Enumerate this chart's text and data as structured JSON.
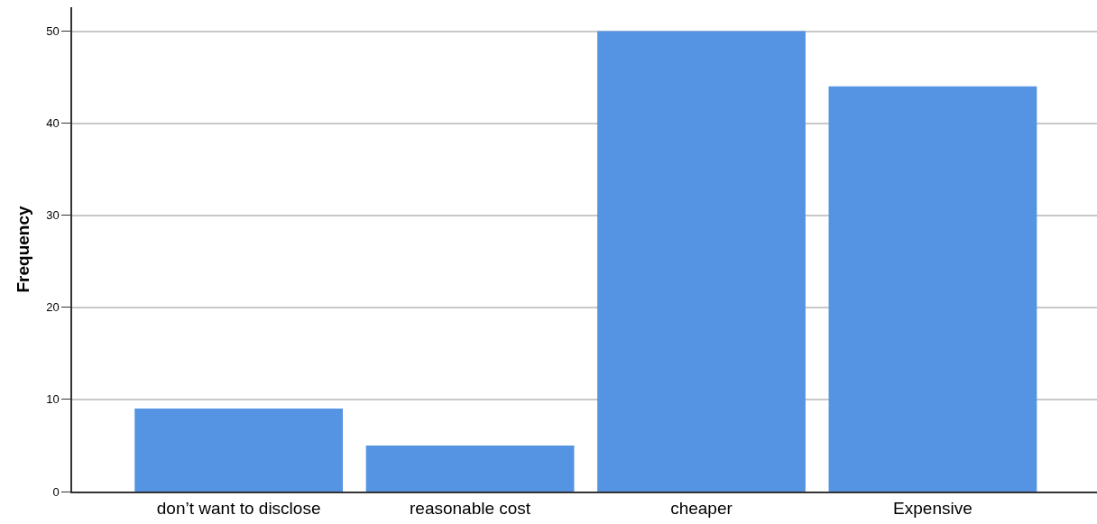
{
  "chart_data": {
    "type": "bar",
    "ylabel": "Frequency",
    "categories": [
      "don’t want to disclose",
      "reasonable cost",
      "cheaper",
      "Expensive"
    ],
    "values": [
      9,
      5,
      50,
      44
    ],
    "color": "#5594e3",
    "ylim": [
      0,
      52.6
    ],
    "yticks": [
      0,
      10,
      20,
      30,
      40,
      50
    ],
    "grid": "y",
    "legend": false
  }
}
